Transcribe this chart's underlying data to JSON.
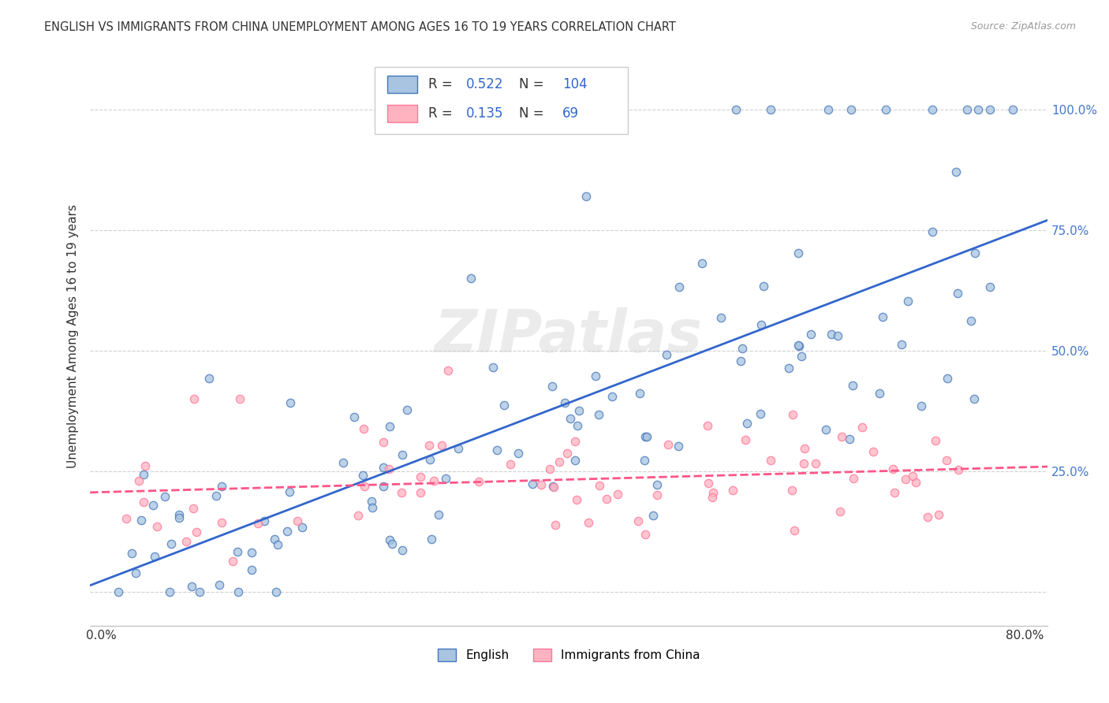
{
  "title": "ENGLISH VS IMMIGRANTS FROM CHINA UNEMPLOYMENT AMONG AGES 16 TO 19 YEARS CORRELATION CHART",
  "source": "Source: ZipAtlas.com",
  "ylabel": "Unemployment Among Ages 16 to 19 years",
  "english_color_fill": "#A8C4E0",
  "english_color_edge": "#4477BB",
  "english_color_line": "#3366CC",
  "immigrants_color_fill": "#FFB3C1",
  "immigrants_color_edge": "#FF7799",
  "immigrants_color_line": "#FF5588",
  "english_R": 0.522,
  "english_N": 104,
  "immigrants_R": 0.135,
  "immigrants_N": 69,
  "legend_english_label": "English",
  "legend_immigrants_label": "Immigrants from China",
  "watermark": "ZIPatlas",
  "background_color": "#FFFFFF"
}
